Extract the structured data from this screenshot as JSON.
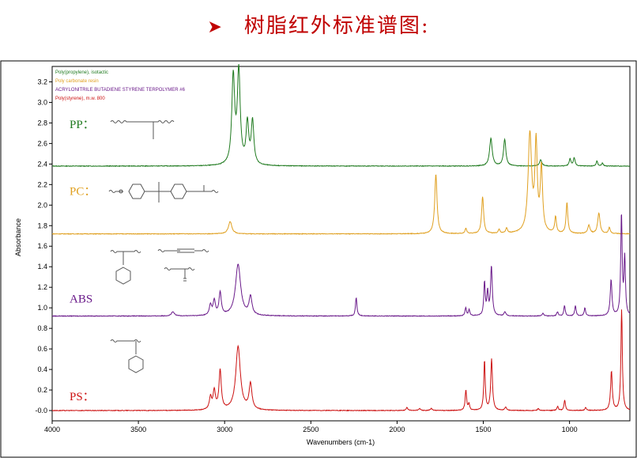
{
  "page": {
    "title": "树脂红外标准谱图:"
  },
  "chart_data": {
    "type": "line",
    "xlabel": "Wavenumbers (cm-1)",
    "ylabel": "Absorbance",
    "xlim": [
      4000,
      650
    ],
    "ylim": [
      -0.1,
      3.35
    ],
    "x_ticks": [
      4000,
      3500,
      3000,
      2500,
      2000,
      1500,
      1000
    ],
    "y_ticks": [
      {
        "v": 0.0,
        "label": "-0.0"
      },
      {
        "v": 0.2,
        "label": "0.2"
      },
      {
        "v": 0.4,
        "label": "0.4"
      },
      {
        "v": 0.6,
        "label": "0.6"
      },
      {
        "v": 0.8,
        "label": "0.8"
      },
      {
        "v": 1.0,
        "label": "1.0"
      },
      {
        "v": 1.2,
        "label": "1.2"
      },
      {
        "v": 1.4,
        "label": "1.4"
      },
      {
        "v": 1.6,
        "label": "1.6"
      },
      {
        "v": 1.8,
        "label": "1.8"
      },
      {
        "v": 2.0,
        "label": "2.0"
      },
      {
        "v": 2.2,
        "label": "2.2"
      },
      {
        "v": 2.4,
        "label": "2.4"
      },
      {
        "v": 2.6,
        "label": "2.6"
      },
      {
        "v": 2.8,
        "label": "2.8"
      },
      {
        "v": 3.0,
        "label": "3.0"
      },
      {
        "v": 3.2,
        "label": "3.2"
      }
    ],
    "grid": false,
    "legend_position": "top-left",
    "series": [
      {
        "name": "Poly(propylene), isotactic",
        "short_label": "PP：",
        "color": "#1f7a1f",
        "baseline": 2.38,
        "peaks": [
          [
            2950,
            0.85,
            10
          ],
          [
            2918,
            0.9,
            10
          ],
          [
            2868,
            0.4,
            9
          ],
          [
            2838,
            0.42,
            9
          ],
          [
            1456,
            0.27,
            9
          ],
          [
            1376,
            0.26,
            8
          ],
          [
            1167,
            0.06,
            8
          ],
          [
            997,
            0.07,
            6
          ],
          [
            973,
            0.08,
            6
          ],
          [
            841,
            0.05,
            5
          ],
          [
            809,
            0.03,
            5
          ]
        ]
      },
      {
        "name": "Poly carbonate resin",
        "short_label": "PC：",
        "color": "#e0a020",
        "baseline": 1.72,
        "peaks": [
          [
            2968,
            0.12,
            12
          ],
          [
            1775,
            0.58,
            8
          ],
          [
            1601,
            0.05,
            6
          ],
          [
            1504,
            0.36,
            7
          ],
          [
            1408,
            0.04,
            6
          ],
          [
            1365,
            0.05,
            6
          ],
          [
            1230,
            0.96,
            12
          ],
          [
            1194,
            0.85,
            8
          ],
          [
            1163,
            0.62,
            8
          ],
          [
            1081,
            0.16,
            6
          ],
          [
            1015,
            0.3,
            6
          ],
          [
            888,
            0.08,
            8
          ],
          [
            830,
            0.2,
            8
          ],
          [
            769,
            0.06,
            6
          ]
        ]
      },
      {
        "name": "ACRYLONITRILE BUTADIENE STYRENE TERPOLYMER #6",
        "short_label": "ABS",
        "color": "#6a1a8a",
        "baseline": 0.92,
        "peaks": [
          [
            3300,
            0.04,
            10
          ],
          [
            3082,
            0.1,
            8
          ],
          [
            3060,
            0.14,
            8
          ],
          [
            3026,
            0.22,
            8
          ],
          [
            2922,
            0.5,
            18
          ],
          [
            2850,
            0.18,
            10
          ],
          [
            2237,
            0.18,
            5
          ],
          [
            1602,
            0.08,
            5
          ],
          [
            1582,
            0.06,
            5
          ],
          [
            1493,
            0.32,
            5
          ],
          [
            1475,
            0.22,
            5
          ],
          [
            1453,
            0.48,
            6
          ],
          [
            1375,
            0.04,
            6
          ],
          [
            1154,
            0.03,
            5
          ],
          [
            1070,
            0.04,
            5
          ],
          [
            1029,
            0.1,
            5
          ],
          [
            966,
            0.1,
            5
          ],
          [
            911,
            0.08,
            5
          ],
          [
            759,
            0.35,
            6
          ],
          [
            699,
            0.98,
            5
          ],
          [
            680,
            0.55,
            5
          ]
        ]
      },
      {
        "name": "Poly(styrene), m.w. 800",
        "short_label": "PS：",
        "color": "#cc1111",
        "baseline": 0.0,
        "peaks": [
          [
            3082,
            0.12,
            8
          ],
          [
            3060,
            0.18,
            8
          ],
          [
            3026,
            0.38,
            8
          ],
          [
            2922,
            0.62,
            16
          ],
          [
            2850,
            0.25,
            10
          ],
          [
            1943,
            0.03,
            6
          ],
          [
            1870,
            0.02,
            6
          ],
          [
            1802,
            0.02,
            6
          ],
          [
            1601,
            0.2,
            5
          ],
          [
            1583,
            0.06,
            5
          ],
          [
            1493,
            0.48,
            5
          ],
          [
            1452,
            0.5,
            6
          ],
          [
            1370,
            0.03,
            6
          ],
          [
            1181,
            0.02,
            5
          ],
          [
            1069,
            0.04,
            5
          ],
          [
            1028,
            0.1,
            5
          ],
          [
            906,
            0.03,
            5
          ],
          [
            757,
            0.38,
            6
          ],
          [
            698,
            0.98,
            5
          ]
        ]
      }
    ]
  }
}
